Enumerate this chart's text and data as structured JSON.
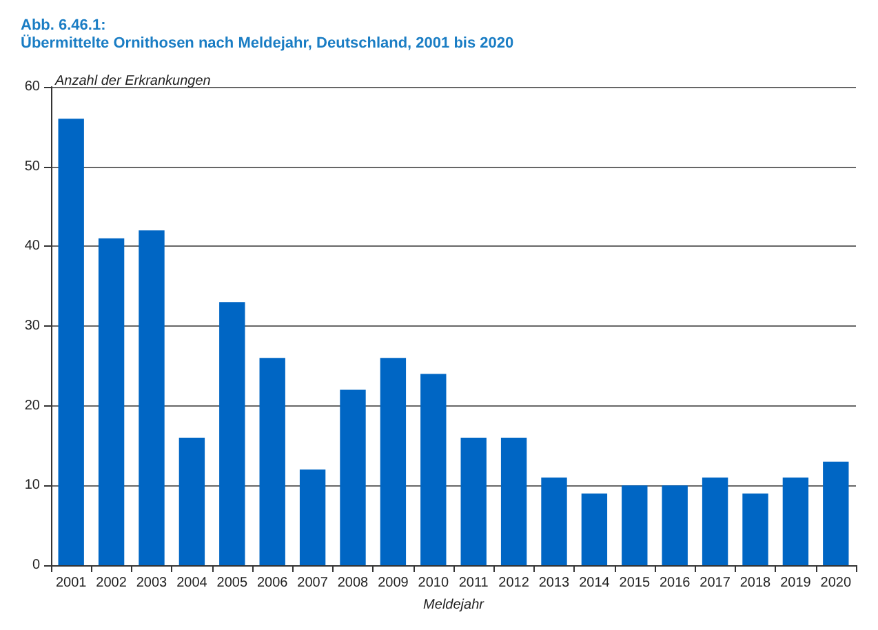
{
  "chart_data": {
    "type": "bar",
    "title": "Abb. 6.46.1:",
    "subtitle": "Übermittelte Ornithosen nach Meldejahr, Deutschland, 2001 bis 2020",
    "ylabel": "Anzahl der Erkrankungen",
    "xlabel": "Meldejahr",
    "categories": [
      "2001",
      "2002",
      "2003",
      "2004",
      "2005",
      "2006",
      "2007",
      "2008",
      "2009",
      "2010",
      "2011",
      "2012",
      "2013",
      "2014",
      "2015",
      "2016",
      "2017",
      "2018",
      "2019",
      "2020"
    ],
    "values": [
      56,
      41,
      42,
      16,
      33,
      26,
      12,
      22,
      26,
      24,
      16,
      16,
      11,
      9,
      10,
      10,
      11,
      9,
      11,
      13
    ],
    "color": "#0066c4",
    "ylim": [
      0,
      60
    ],
    "yticks": [
      0,
      10,
      20,
      30,
      40,
      50,
      60
    ],
    "grid": "y"
  }
}
